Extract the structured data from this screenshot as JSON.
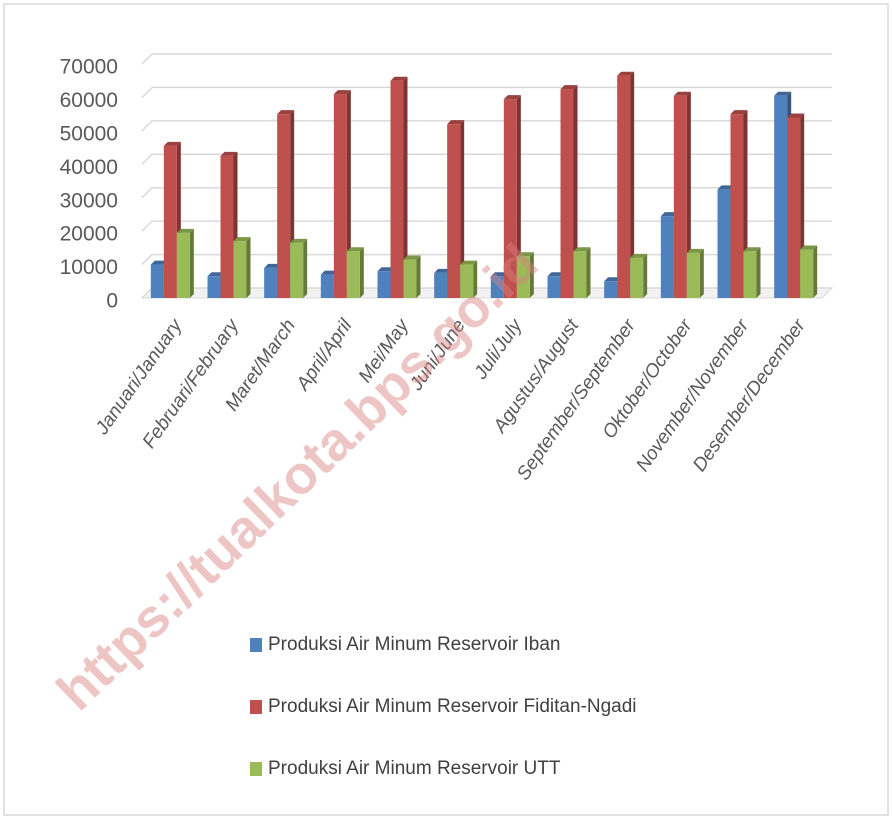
{
  "chart_data": {
    "type": "bar3d",
    "watermark": "https://tualkota.bps.go.id",
    "categories": [
      "Januari/January",
      "Februari/February",
      "Maret/March",
      "April/April",
      "Mei/May",
      "Juni/June",
      "Juli/July",
      "Agustus/August",
      "September/September",
      "Oktober/October",
      "November/November",
      "Desember/December"
    ],
    "series": [
      {
        "name": "Produksi Air Minum Reservoir Iban",
        "color": "#4f81bd",
        "values": [
          10000,
          6500,
          9000,
          7000,
          8000,
          7500,
          6500,
          6500,
          5000,
          24500,
          32500,
          60500
        ]
      },
      {
        "name": "Produksi Air Minum Reservoir Fiditan-Ngadi",
        "color": "#c0504d",
        "values": [
          45500,
          42500,
          55000,
          61000,
          65000,
          52000,
          59500,
          62500,
          66500,
          60500,
          55000,
          54000
        ]
      },
      {
        "name": "Produksi Air Minum Reservoir UTT",
        "color": "#9bbb59",
        "values": [
          19500,
          17000,
          16500,
          14000,
          11500,
          10000,
          12500,
          14000,
          12000,
          13500,
          14000,
          14500
        ]
      }
    ],
    "ylim": [
      0,
      70000
    ],
    "yticks": [
      0,
      10000,
      20000,
      30000,
      40000,
      50000,
      60000,
      70000
    ],
    "grid": true
  }
}
